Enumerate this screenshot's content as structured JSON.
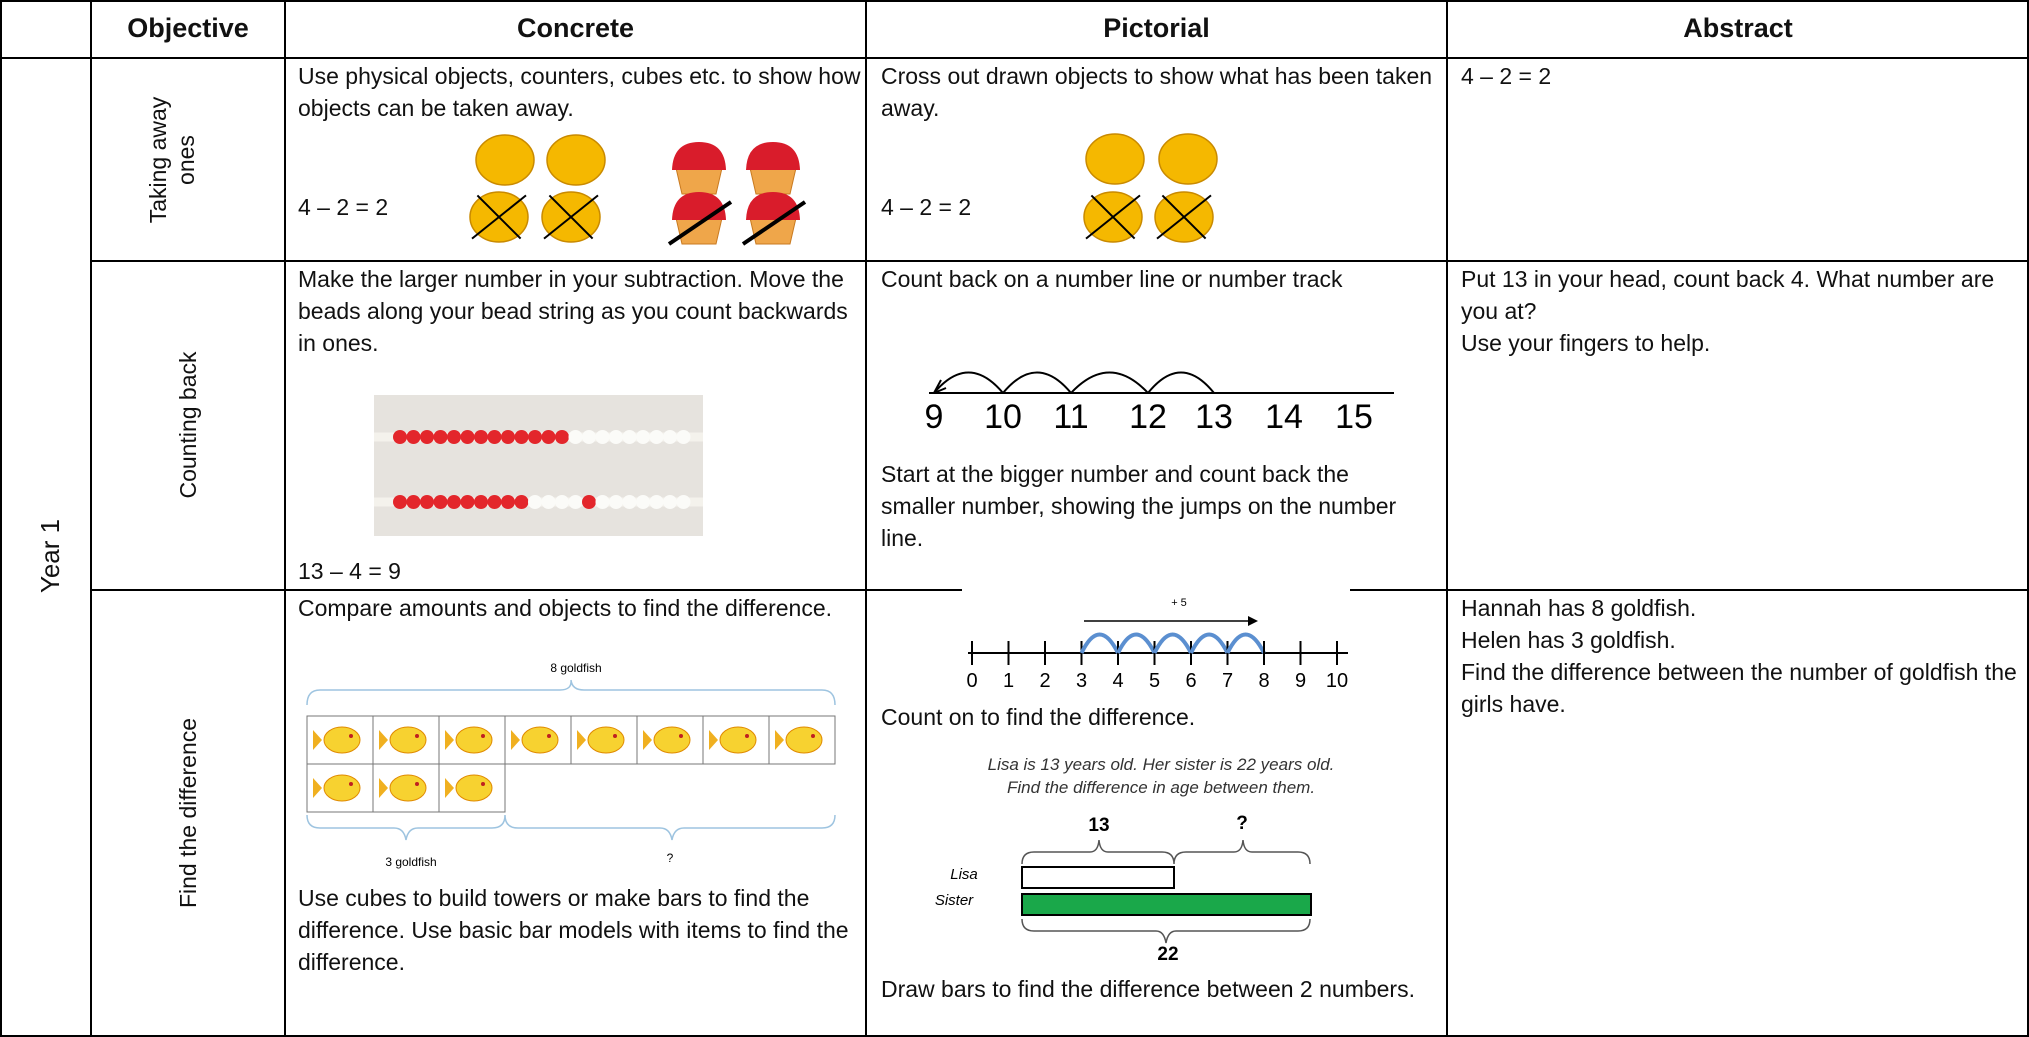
{
  "header": {
    "columns": [
      "Objective",
      "Concrete",
      "Pictorial",
      "Abstract"
    ]
  },
  "year": "Year 1",
  "rows": [
    {
      "objective": "Taking away ones",
      "concrete": {
        "text": "Use physical objects, counters, cubes etc. to show how objects can be taken away.",
        "equation": "4 – 2 = 2"
      },
      "pictorial": {
        "text": "Cross out drawn objects to show what has been taken away.",
        "equation": "4 – 2 = 2"
      },
      "abstract": [
        "4 – 2 = 2"
      ]
    },
    {
      "objective": "Counting back",
      "concrete": {
        "text": "Make the larger number in your subtraction. Move the beads along your bead string as you count backwards in ones.",
        "equation": "13 – 4 = 9"
      },
      "pictorial": {
        "text": "Count back on a number line or number track",
        "number_line": [
          "9",
          "10",
          "11",
          "12",
          "13",
          "14",
          "15"
        ],
        "note": "Start at the bigger number and count back the smaller number, showing the jumps on the number line."
      },
      "abstract": [
        "Put 13 in your head, count back 4. What number are you at?",
        "Use your fingers to help."
      ]
    },
    {
      "objective": "Find the difference",
      "concrete": {
        "text": "Compare amounts and objects to find the difference.",
        "bar_top": "8 goldfish",
        "bar_left": "3 goldfish",
        "bar_right": "?",
        "note": "Use cubes to build towers or make bars to find the difference. Use basic bar models with items to find the difference."
      },
      "pictorial": {
        "jump_label": "+ 5",
        "number_line": [
          "0",
          "1",
          "2",
          "3",
          "4",
          "5",
          "6",
          "7",
          "8",
          "9",
          "10"
        ],
        "text": "Count on to find the difference.",
        "problem": [
          "Lisa is 13 years old. Her sister is 22 years old.",
          "Find the difference in age between them."
        ],
        "bar_labels": [
          "Lisa",
          "Sister"
        ],
        "brace_top": [
          "13",
          "?"
        ],
        "brace_bottom": "22",
        "note": "Draw bars to find the difference between 2 numbers."
      },
      "abstract": [
        "Hannah has 8 goldfish.",
        "Helen has 3 goldfish.",
        "Find the difference between the number of goldfish the girls have."
      ]
    }
  ]
}
